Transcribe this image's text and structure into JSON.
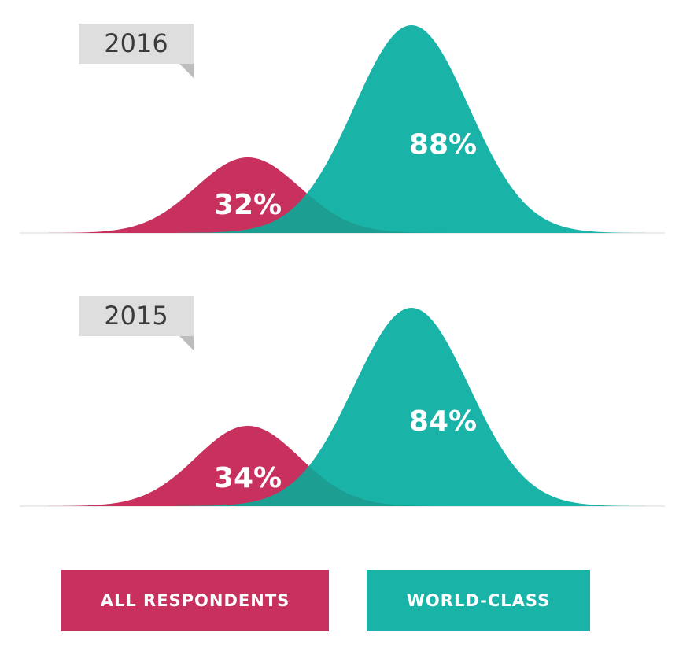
{
  "colors": {
    "all_respondents": "#c8305d",
    "world_class": "#19b3a8",
    "overlap": "#1c9e93",
    "tag_bg": "#dedede",
    "tag_corner": "#bdbdbd"
  },
  "legend": {
    "all_respondents": "ALL RESPONDENTS",
    "world_class": "WORLD-CLASS"
  },
  "chart_data": [
    {
      "type": "area",
      "year_label": "2016",
      "series": [
        {
          "name": "ALL RESPONDENTS",
          "value": 32,
          "label": "32%"
        },
        {
          "name": "WORLD-CLASS",
          "value": 88,
          "label": "88%"
        }
      ]
    },
    {
      "type": "area",
      "year_label": "2015",
      "series": [
        {
          "name": "ALL RESPONDENTS",
          "value": 34,
          "label": "34%"
        },
        {
          "name": "WORLD-CLASS",
          "value": 84,
          "label": "84%"
        }
      ]
    }
  ]
}
